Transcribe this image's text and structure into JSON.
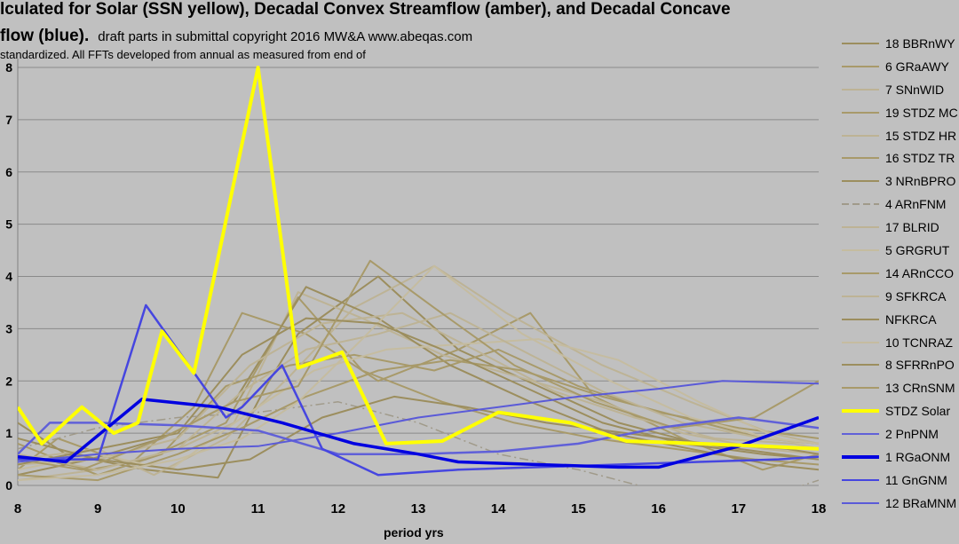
{
  "title_line1": "lculated for Solar (SSN yellow), Decadal Convex Streamflow (amber), and Decadal Concave",
  "title_line2_bold": "flow (blue).",
  "title_line2_rest": "draft  parts in submittal copyright 2016 MW&A www.abeqas.com",
  "subtitle": "standardized.  All FFTs developed from annual as measured from end of",
  "colors": {
    "amber": "#9c8e5e",
    "amber_light": "#b8ad8a",
    "yellow": "#ffff00",
    "blue": "#0000e0",
    "blue_light": "#5a5ad8"
  },
  "chart_data": {
    "type": "line",
    "xlabel": "period yrs",
    "xlim": [
      8,
      18
    ],
    "x_ticks": [
      "8",
      "9",
      "10",
      "11",
      "12",
      "13",
      "14",
      "15",
      "16",
      "17",
      "18"
    ],
    "ylim": [
      0,
      8
    ],
    "y_ticks": [
      "8",
      "7",
      "6",
      "5",
      "4",
      "3",
      "2",
      "1",
      "0"
    ],
    "grid": true,
    "series": [
      {
        "name": "18  BBRnWY",
        "color": "#9c8e5e",
        "width": 2,
        "points": [
          [
            8,
            1.2
          ],
          [
            8.6,
            0.6
          ],
          [
            9.6,
            0.3
          ],
          [
            10.5,
            0.15
          ],
          [
            11.1,
            1.9
          ],
          [
            11.5,
            2.9
          ],
          [
            12.5,
            4.0
          ],
          [
            13.5,
            2.6
          ],
          [
            14.5,
            1.9
          ],
          [
            15.5,
            1.2
          ],
          [
            16.5,
            0.8
          ],
          [
            17.5,
            0.6
          ],
          [
            18,
            0.5
          ]
        ]
      },
      {
        "name": "6  GRaAWY",
        "color": "#a89a6a",
        "width": 2,
        "points": [
          [
            8,
            0.3
          ],
          [
            8.5,
            0.9
          ],
          [
            9.4,
            0.4
          ],
          [
            10.2,
            1.5
          ],
          [
            10.8,
            3.3
          ],
          [
            11.6,
            2.9
          ],
          [
            12.5,
            2.0
          ],
          [
            13.5,
            2.6
          ],
          [
            14.4,
            3.3
          ],
          [
            15.2,
            1.7
          ],
          [
            16.3,
            0.9
          ],
          [
            17.3,
            0.3
          ],
          [
            18,
            0.6
          ]
        ]
      },
      {
        "name": "7  SNnWID",
        "color": "#bdb395",
        "width": 2,
        "points": [
          [
            8,
            0.1
          ],
          [
            9,
            0.3
          ],
          [
            10,
            0.7
          ],
          [
            10.7,
            1.2
          ],
          [
            11.5,
            3.7
          ],
          [
            12.3,
            3.2
          ],
          [
            13.3,
            2.5
          ],
          [
            14.2,
            2.1
          ],
          [
            15.3,
            1.6
          ],
          [
            16.3,
            1.0
          ],
          [
            17.3,
            0.7
          ],
          [
            18,
            0.6
          ]
        ]
      },
      {
        "name": "19 STDZ MC",
        "color": "#a89a6a",
        "width": 2,
        "points": [
          [
            8,
            0.8
          ],
          [
            9,
            0.2
          ],
          [
            9.8,
            0.6
          ],
          [
            10.6,
            1.9
          ],
          [
            11.4,
            2.3
          ],
          [
            12.2,
            2.5
          ],
          [
            13.2,
            2.2
          ],
          [
            14,
            2.6
          ],
          [
            15,
            1.9
          ],
          [
            16,
            1.4
          ],
          [
            17,
            1.1
          ],
          [
            18,
            0.9
          ]
        ]
      },
      {
        "name": "15 STDZ HR",
        "color": "#bdb395",
        "width": 2,
        "points": [
          [
            8,
            0.5
          ],
          [
            9,
            0.7
          ],
          [
            9.7,
            0.2
          ],
          [
            10.6,
            0.9
          ],
          [
            11.4,
            2.1
          ],
          [
            12.2,
            3.4
          ],
          [
            13.2,
            4.2
          ],
          [
            14.1,
            3.3
          ],
          [
            15.3,
            2.3
          ],
          [
            16.4,
            1.6
          ],
          [
            17.4,
            1.0
          ],
          [
            18,
            0.8
          ]
        ]
      },
      {
        "name": "16 STDZ TR",
        "color": "#a89a6a",
        "width": 2,
        "points": [
          [
            8,
            0.6
          ],
          [
            8.9,
            0.3
          ],
          [
            9.6,
            0.5
          ],
          [
            10.6,
            1.2
          ],
          [
            11.5,
            3.6
          ],
          [
            12.3,
            2.2
          ],
          [
            13.3,
            1.6
          ],
          [
            14.2,
            1.2
          ],
          [
            15.2,
            0.9
          ],
          [
            16.2,
            0.7
          ],
          [
            17.2,
            0.5
          ],
          [
            18,
            0.4
          ]
        ]
      },
      {
        "name": "3  NRnBPRO",
        "color": "#9c8e5e",
        "width": 2,
        "points": [
          [
            8,
            0.2
          ],
          [
            8.9,
            0.5
          ],
          [
            9.8,
            0.9
          ],
          [
            10.7,
            1.6
          ],
          [
            11.6,
            3.8
          ],
          [
            12.5,
            3.2
          ],
          [
            13.4,
            2.3
          ],
          [
            14.4,
            1.6
          ],
          [
            15.4,
            1.0
          ],
          [
            16.4,
            0.7
          ],
          [
            17.4,
            0.4
          ],
          [
            18,
            0.3
          ]
        ]
      },
      {
        "name": "4  ARnFNM",
        "color": "#a09a8a",
        "width": 1.5,
        "dash": "10 4 2 4",
        "points": [
          [
            8,
            0.7
          ],
          [
            9,
            1.1
          ],
          [
            10,
            1.3
          ],
          [
            11,
            1.4
          ],
          [
            12,
            1.6
          ],
          [
            13,
            1.2
          ],
          [
            14,
            0.6
          ],
          [
            15,
            0.3
          ],
          [
            16,
            -0.1
          ],
          [
            17,
            -0.4
          ],
          [
            18,
            0.1
          ]
        ]
      },
      {
        "name": "17  BLRID",
        "color": "#bdb395",
        "width": 2,
        "points": [
          [
            8,
            0.4
          ],
          [
            9,
            0.5
          ],
          [
            10,
            0.9
          ],
          [
            10.9,
            2.3
          ],
          [
            11.8,
            3.1
          ],
          [
            12.8,
            3.3
          ],
          [
            13.7,
            2.6
          ],
          [
            14.7,
            1.8
          ],
          [
            15.7,
            1.3
          ],
          [
            16.7,
            0.9
          ],
          [
            17.7,
            0.8
          ],
          [
            18,
            0.7
          ]
        ]
      },
      {
        "name": "5  GRGRUT",
        "color": "#c5bca0",
        "width": 2,
        "points": [
          [
            8,
            0.3
          ],
          [
            9,
            0.6
          ],
          [
            9.9,
            0.3
          ],
          [
            10.8,
            1.3
          ],
          [
            11.7,
            2.2
          ],
          [
            12.6,
            2.6
          ],
          [
            13.5,
            2.7
          ],
          [
            14.5,
            2.8
          ],
          [
            15.5,
            2.4
          ],
          [
            16.5,
            1.6
          ],
          [
            17.5,
            0.9
          ],
          [
            18,
            0.7
          ]
        ]
      },
      {
        "name": "14  ARnCCO",
        "color": "#a89a6a",
        "width": 2,
        "points": [
          [
            8,
            0.2
          ],
          [
            9,
            0.1
          ],
          [
            10,
            0.6
          ],
          [
            10.8,
            1.1
          ],
          [
            11.6,
            1.7
          ],
          [
            12.5,
            2.2
          ],
          [
            13.4,
            2.4
          ],
          [
            14.3,
            2.2
          ],
          [
            15.3,
            1.7
          ],
          [
            16.3,
            1.3
          ],
          [
            17.3,
            0.9
          ],
          [
            18,
            0.8
          ]
        ]
      },
      {
        "name": "9  SFKRCA",
        "color": "#bdb395",
        "width": 2,
        "points": [
          [
            8,
            0.6
          ],
          [
            9,
            0.3
          ],
          [
            10,
            0.7
          ],
          [
            10.8,
            1.8
          ],
          [
            11.6,
            2.6
          ],
          [
            12.5,
            2.9
          ],
          [
            13.4,
            3.3
          ],
          [
            14.4,
            2.5
          ],
          [
            15.3,
            1.8
          ],
          [
            16.3,
            1.2
          ],
          [
            17.3,
            0.9
          ],
          [
            18,
            0.8
          ]
        ]
      },
      {
        "name": "NFKRCA",
        "color": "#9c8e5e",
        "width": 2,
        "points": [
          [
            8,
            0.9
          ],
          [
            9,
            0.5
          ],
          [
            10,
            0.3
          ],
          [
            10.9,
            0.5
          ],
          [
            11.8,
            1.3
          ],
          [
            12.7,
            1.7
          ],
          [
            13.6,
            1.5
          ],
          [
            14.6,
            1.2
          ],
          [
            15.6,
            1.0
          ],
          [
            16.6,
            0.8
          ],
          [
            17.6,
            0.7
          ],
          [
            18,
            0.6
          ]
        ]
      },
      {
        "name": "10  TCNRAZ",
        "color": "#c5bca0",
        "width": 2,
        "points": [
          [
            8,
            0.1
          ],
          [
            9,
            0.2
          ],
          [
            10,
            0.5
          ],
          [
            10.8,
            0.9
          ],
          [
            11.5,
            1.6
          ],
          [
            12.3,
            2.8
          ],
          [
            13.2,
            4.2
          ],
          [
            14.3,
            2.9
          ],
          [
            15.4,
            2.0
          ],
          [
            16.4,
            1.3
          ],
          [
            17.4,
            0.9
          ],
          [
            18,
            0.8
          ]
        ]
      },
      {
        "name": "8  SFRRnPO",
        "color": "#9c8e5e",
        "width": 2,
        "points": [
          [
            8,
            0.4
          ],
          [
            9,
            0.7
          ],
          [
            10,
            1.0
          ],
          [
            10.8,
            2.5
          ],
          [
            11.6,
            3.2
          ],
          [
            12.5,
            3.1
          ],
          [
            13.3,
            2.6
          ],
          [
            14.3,
            1.9
          ],
          [
            15.3,
            1.2
          ],
          [
            16.3,
            0.8
          ],
          [
            17.3,
            0.6
          ],
          [
            18,
            0.5
          ]
        ]
      },
      {
        "name": "13  CRnSNM",
        "color": "#a89a6a",
        "width": 2,
        "points": [
          [
            8,
            0.5
          ],
          [
            8.8,
            0.3
          ],
          [
            9.8,
            0.9
          ],
          [
            10.7,
            1.6
          ],
          [
            11.5,
            1.9
          ],
          [
            12.4,
            4.3
          ],
          [
            13.2,
            3.4
          ],
          [
            14.2,
            2.3
          ],
          [
            15.2,
            1.6
          ],
          [
            16.2,
            1.1
          ],
          [
            17.2,
            1.3
          ],
          [
            18,
            2.0
          ]
        ]
      },
      {
        "name": "STDZ Solar",
        "color": "#ffff00",
        "width": 4,
        "points": [
          [
            8,
            1.5
          ],
          [
            8.3,
            0.8
          ],
          [
            8.8,
            1.5
          ],
          [
            9.2,
            1.0
          ],
          [
            9.5,
            1.2
          ],
          [
            9.8,
            2.95
          ],
          [
            10.2,
            2.15
          ],
          [
            11,
            8.0
          ],
          [
            11.5,
            2.25
          ],
          [
            12.05,
            2.55
          ],
          [
            12.6,
            0.8
          ],
          [
            13.3,
            0.85
          ],
          [
            14,
            1.4
          ],
          [
            14.9,
            1.2
          ],
          [
            15.6,
            0.85
          ],
          [
            16.5,
            0.8
          ],
          [
            17.3,
            0.75
          ],
          [
            18,
            0.7
          ]
        ]
      },
      {
        "name": "2  PnPNM",
        "color": "#6060d8",
        "width": 2.5,
        "points": [
          [
            8,
            0.6
          ],
          [
            8.4,
            1.2
          ],
          [
            9,
            1.2
          ],
          [
            10,
            1.15
          ],
          [
            11,
            1.05
          ],
          [
            12,
            0.6
          ],
          [
            13,
            0.6
          ],
          [
            14,
            0.65
          ],
          [
            15,
            0.8
          ],
          [
            16,
            1.1
          ],
          [
            17,
            1.3
          ],
          [
            18,
            1.1
          ]
        ]
      },
      {
        "name": "1  RGaONM",
        "color": "#0000e0",
        "width": 3.5,
        "points": [
          [
            8,
            0.55
          ],
          [
            8.6,
            0.45
          ],
          [
            9.55,
            1.65
          ],
          [
            10.5,
            1.5
          ],
          [
            11.3,
            1.2
          ],
          [
            12.2,
            0.8
          ],
          [
            13,
            0.6
          ],
          [
            13.5,
            0.45
          ],
          [
            14.5,
            0.4
          ],
          [
            15.5,
            0.35
          ],
          [
            16,
            0.35
          ],
          [
            17,
            0.75
          ],
          [
            18,
            1.3
          ]
        ]
      },
      {
        "name": "11  GnGNM",
        "color": "#4646e0",
        "width": 2.5,
        "points": [
          [
            8,
            0.5
          ],
          [
            9,
            0.5
          ],
          [
            9.6,
            3.45
          ],
          [
            10.6,
            1.3
          ],
          [
            10.8,
            1.5
          ],
          [
            11.3,
            2.3
          ],
          [
            11.8,
            0.7
          ],
          [
            12.5,
            0.2
          ],
          [
            13.5,
            0.3
          ],
          [
            14.5,
            0.35
          ],
          [
            15.5,
            0.4
          ],
          [
            16.5,
            0.45
          ],
          [
            17.5,
            0.5
          ],
          [
            18,
            0.55
          ]
        ]
      },
      {
        "name": "12  BRaMNM",
        "color": "#5a5ad8",
        "width": 2,
        "points": [
          [
            8,
            0.45
          ],
          [
            9,
            0.6
          ],
          [
            10,
            0.7
          ],
          [
            11,
            0.75
          ],
          [
            12,
            1.0
          ],
          [
            13,
            1.3
          ],
          [
            14,
            1.5
          ],
          [
            15,
            1.7
          ],
          [
            16,
            1.85
          ],
          [
            16.8,
            2.0
          ],
          [
            18,
            1.95
          ]
        ]
      }
    ]
  }
}
